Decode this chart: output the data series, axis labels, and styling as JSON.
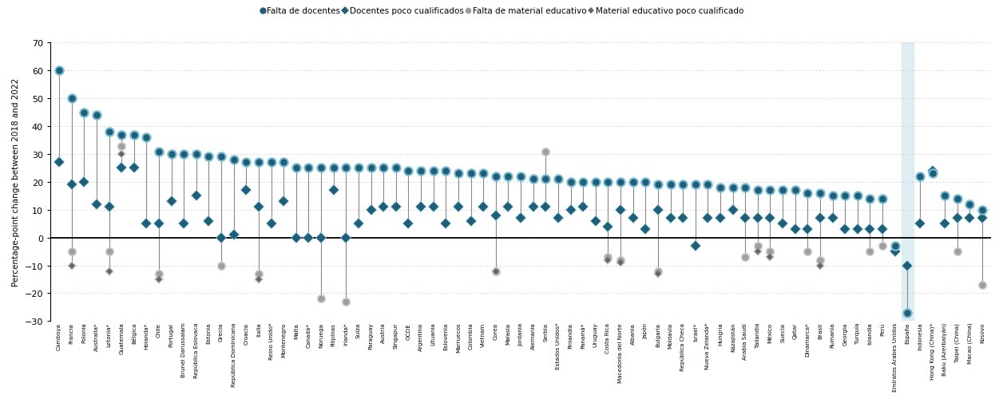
{
  "chart_data": [
    [
      "Camboya",
      60,
      27,
      null,
      null
    ],
    [
      "Francia",
      50,
      19,
      -5,
      -10
    ],
    [
      "Polonia",
      45,
      20,
      null,
      null
    ],
    [
      "Australia*",
      44,
      12,
      null,
      null
    ],
    [
      "Letonia*",
      38,
      11,
      -5,
      -12
    ],
    [
      "Guatemala",
      37,
      25,
      33,
      30
    ],
    [
      "Bélgica",
      37,
      25,
      null,
      null
    ],
    [
      "Holanda*",
      36,
      5,
      null,
      null
    ],
    [
      "Chile",
      31,
      5,
      -13,
      -15
    ],
    [
      "Portugal",
      30,
      13,
      null,
      null
    ],
    [
      "Brunei Darussalam",
      30,
      5,
      null,
      null
    ],
    [
      "República Eslovaca",
      30,
      15,
      null,
      null
    ],
    [
      "Estonia",
      29,
      6,
      null,
      null
    ],
    [
      "Grecia",
      29,
      0,
      -10,
      null
    ],
    [
      "República Dominicana",
      28,
      1,
      null,
      null
    ],
    [
      "Croacia",
      27,
      17,
      null,
      null
    ],
    [
      "Italia",
      27,
      11,
      -13,
      -15
    ],
    [
      "Reino Unido*",
      27,
      5,
      null,
      null
    ],
    [
      "Montenegro",
      27,
      13,
      null,
      null
    ],
    [
      "Malta",
      25,
      0,
      null,
      null
    ],
    [
      "Canadá*",
      25,
      0,
      null,
      null
    ],
    [
      "Noruega",
      25,
      0,
      -22,
      null
    ],
    [
      "Filipinas",
      25,
      17,
      null,
      null
    ],
    [
      "Irlanda*",
      25,
      0,
      -23,
      null
    ],
    [
      "Suiza",
      25,
      5,
      null,
      null
    ],
    [
      "Paraguay",
      25,
      10,
      null,
      null
    ],
    [
      "Austria",
      25,
      11,
      null,
      null
    ],
    [
      "Singapur",
      25,
      11,
      null,
      null
    ],
    [
      "OCDE",
      24,
      5,
      null,
      null
    ],
    [
      "Argentina",
      24,
      11,
      null,
      null
    ],
    [
      "Lituania",
      24,
      11,
      null,
      null
    ],
    [
      "Eslovenia",
      24,
      5,
      null,
      null
    ],
    [
      "Marruecos",
      23,
      11,
      null,
      null
    ],
    [
      "Colombia",
      23,
      6,
      null,
      null
    ],
    [
      "Vietnam",
      23,
      11,
      null,
      null
    ],
    [
      "Corea",
      22,
      8,
      -12,
      -12
    ],
    [
      "Malasia",
      22,
      11,
      null,
      null
    ],
    [
      "Jordania",
      22,
      7,
      null,
      null
    ],
    [
      "Alemania",
      21,
      11,
      null,
      null
    ],
    [
      "Serbia",
      21,
      11,
      31,
      null
    ],
    [
      "Estados Unidos*",
      21,
      7,
      null,
      null
    ],
    [
      "Finlandia",
      20,
      10,
      null,
      null
    ],
    [
      "Panamá*",
      20,
      11,
      null,
      null
    ],
    [
      "Uruguay",
      20,
      6,
      null,
      null
    ],
    [
      "Costa Rica",
      20,
      4,
      -7,
      -8
    ],
    [
      "Macedonia del Norte",
      20,
      10,
      -8,
      -9
    ],
    [
      "Albania",
      20,
      7,
      null,
      null
    ],
    [
      "Japón",
      20,
      3,
      null,
      null
    ],
    [
      "Bulgaria",
      19,
      10,
      -12,
      -13
    ],
    [
      "Moldavia",
      19,
      7,
      null,
      null
    ],
    [
      "República Checa",
      19,
      7,
      null,
      null
    ],
    [
      "Israel*",
      19,
      -3,
      null,
      null
    ],
    [
      "Nueva Zelanda*",
      19,
      7,
      null,
      null
    ],
    [
      "Hungría",
      18,
      7,
      null,
      null
    ],
    [
      "Kazajistán",
      18,
      10,
      null,
      null
    ],
    [
      "Arabia Saudí",
      18,
      7,
      -7,
      null
    ],
    [
      "Tailandia",
      17,
      7,
      -3,
      -5
    ],
    [
      "México",
      17,
      7,
      -5,
      -7
    ],
    [
      "Suecia",
      17,
      5,
      null,
      null
    ],
    [
      "Qatar",
      17,
      3,
      null,
      null
    ],
    [
      "Dinamarca*",
      16,
      3,
      -5,
      null
    ],
    [
      "Brasil",
      16,
      7,
      -8,
      -10
    ],
    [
      "Rumanía",
      15,
      7,
      null,
      null
    ],
    [
      "Georgia",
      15,
      3,
      null,
      null
    ],
    [
      "Turquía",
      15,
      3,
      null,
      null
    ],
    [
      "Islandia",
      14,
      3,
      -5,
      null
    ],
    [
      "Perú",
      14,
      3,
      -3,
      null
    ],
    [
      "Emiratos Árabes Unidos",
      -3,
      -5,
      null,
      null
    ],
    [
      "España",
      -27,
      -10,
      -27,
      null
    ],
    [
      "Indonesia",
      22,
      5,
      null,
      null
    ],
    [
      "Hong Kong (China)*",
      23,
      24,
      null,
      null
    ],
    [
      "Baku (Azerbaiyán)",
      15,
      5,
      null,
      null
    ],
    [
      "Taipei (China)",
      14,
      7,
      -5,
      null
    ],
    [
      "Macao (China)",
      12,
      7,
      null,
      null
    ],
    [
      "Kosovo",
      10,
      7,
      -17,
      null
    ]
  ],
  "dark_teal": "#1e5e77",
  "light_blue": "#7cbdd8",
  "light_blue_diamond": "#7cbdd8",
  "gray_circle": "#9e9e9e",
  "light_gray_circle": "#c8c8c8",
  "dark_gray_diamond": "#666666",
  "light_gray_diamond": "#cccccc",
  "highlight_color": "#d3e8f0",
  "connector_color": "#888888",
  "zero_line_color": "#000000",
  "grid_color": "#cccccc",
  "ylabel": "Percentage-point change between 2018 and 2022",
  "ylim": [
    -30,
    70
  ],
  "yticks": [
    -30,
    -20,
    -10,
    0,
    10,
    20,
    30,
    40,
    50,
    60,
    70
  ],
  "legend": [
    {
      "marker": "o",
      "colors": [
        "#7cbdd8",
        "#1e5e77"
      ],
      "label": "Falta de docentes"
    },
    {
      "marker": "D",
      "colors": [
        "#7cbdd8",
        "#1e5e77"
      ],
      "label": "Docentes poco cualificados"
    },
    {
      "marker": "o",
      "colors": [
        "#d0d0d0",
        "#888888"
      ],
      "label": "Falta de material educativo"
    },
    {
      "marker": "D",
      "colors": [
        "#d0d0d0",
        "#888888"
      ],
      "label": "Material educativo poco cualificado"
    }
  ]
}
